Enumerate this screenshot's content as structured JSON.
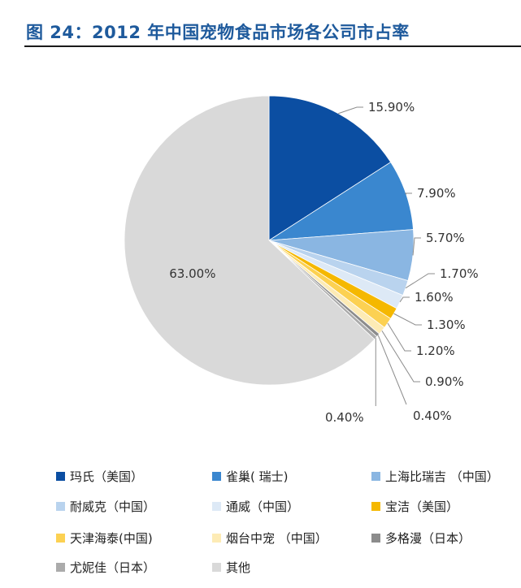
{
  "figure": {
    "title": "图 24：2012 年中国宠物食品市场各公司市占率"
  },
  "chart_data": {
    "type": "pie",
    "title": "",
    "slices": [
      {
        "name": "玛氏（美国）",
        "value": 15.9,
        "label": "15.90%",
        "color": "#0b4ea2"
      },
      {
        "name": "雀巢( 瑞士)",
        "value": 7.9,
        "label": "7.90%",
        "color": "#3a87cf"
      },
      {
        "name": "上海比瑞吉 （中国）",
        "value": 5.7,
        "label": "5.70%",
        "color": "#8ab6e2"
      },
      {
        "name": "耐威克（中国）",
        "value": 1.7,
        "label": "1.70%",
        "color": "#b9d3ee"
      },
      {
        "name": "通威（中国）",
        "value": 1.6,
        "label": "1.60%",
        "color": "#dde9f6"
      },
      {
        "name": "宝洁（美国）",
        "value": 1.3,
        "label": "1.30%",
        "color": "#f5b800"
      },
      {
        "name": "天津海泰(中国)",
        "value": 1.2,
        "label": "1.20%",
        "color": "#fcd152"
      },
      {
        "name": "烟台中宠 （中国）",
        "value": 0.9,
        "label": "0.90%",
        "color": "#fdebb5"
      },
      {
        "name": "多格漫（日本）",
        "value": 0.4,
        "label": "0.40%",
        "color": "#8c8c8c"
      },
      {
        "name": "尤妮佳（日本）",
        "value": 0.4,
        "label": "0.40%",
        "color": "#ababab"
      },
      {
        "name": "其他",
        "value": 63.0,
        "label": "63.00%",
        "color": "#d9d9d9"
      }
    ],
    "legend_position": "bottom"
  }
}
